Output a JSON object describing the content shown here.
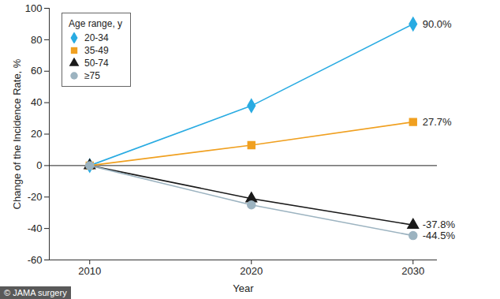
{
  "chart_data": {
    "type": "line",
    "x": [
      2010,
      2020,
      2030
    ],
    "xlabel": "Year",
    "ylabel": "Change of the Incidence Rate, %",
    "xlim": [
      2007.5,
      2031.5
    ],
    "xticks": [
      2010,
      2020,
      2030
    ],
    "ylim": [
      -60,
      100
    ],
    "yticks": [
      -60,
      -40,
      -20,
      0,
      20,
      40,
      60,
      80,
      100
    ],
    "reference_y": 0,
    "legend": "top-left",
    "legend_title": "Age range, y",
    "data_labels": true,
    "credit": "© JAMA surgery",
    "series": [
      {
        "name": "20-34",
        "color": "#29abe2",
        "marker": "diamond",
        "values": [
          0,
          38,
          90.0
        ],
        "value_labels": [
          null,
          null,
          "90.0%"
        ]
      },
      {
        "name": "35-49",
        "color": "#f0a020",
        "marker": "square",
        "values": [
          0,
          13,
          27.7
        ],
        "value_labels": [
          null,
          null,
          "27.7%"
        ]
      },
      {
        "name": "50-74",
        "color": "#1a1a1a",
        "marker": "triangle",
        "values": [
          0,
          -21,
          -37.8
        ],
        "value_labels": [
          null,
          null,
          "-37.8%"
        ]
      },
      {
        "name": "≥75",
        "color": "#9cb3c0",
        "marker": "circle",
        "values": [
          0,
          -25,
          -44.5
        ],
        "value_labels": [
          null,
          null,
          "-44.5%"
        ]
      }
    ]
  }
}
